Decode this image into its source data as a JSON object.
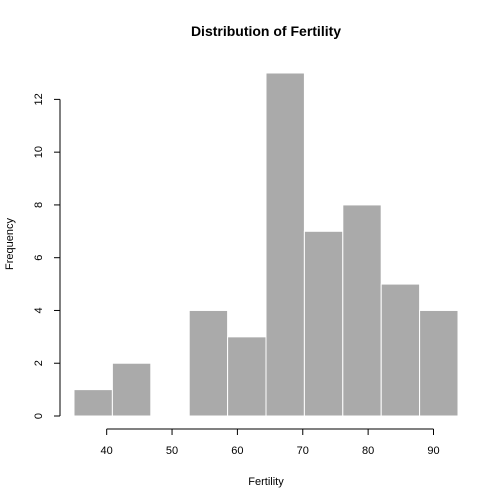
{
  "chart_data": {
    "type": "bar",
    "title": "Distribution of Fertility",
    "xlabel": "Fertility",
    "ylabel": "Frequency",
    "bins": [
      {
        "start": 35,
        "end": 40.875,
        "count": 1
      },
      {
        "start": 40.875,
        "end": 46.75,
        "count": 2
      },
      {
        "start": 46.75,
        "end": 52.625,
        "count": 0
      },
      {
        "start": 52.625,
        "end": 58.5,
        "count": 4
      },
      {
        "start": 58.5,
        "end": 64.375,
        "count": 3
      },
      {
        "start": 64.375,
        "end": 70.25,
        "count": 13
      },
      {
        "start": 70.25,
        "end": 76.125,
        "count": 7
      },
      {
        "start": 76.125,
        "end": 82,
        "count": 8
      },
      {
        "start": 82,
        "end": 87.875,
        "count": 5
      },
      {
        "start": 87.875,
        "end": 93.75,
        "count": 4
      }
    ],
    "xlim": [
      35,
      93.75
    ],
    "ylim": [
      0,
      13
    ],
    "xticks": [
      40,
      50,
      60,
      70,
      80,
      90
    ],
    "yticks": [
      0,
      2,
      4,
      6,
      8,
      10,
      12
    ],
    "grid": false,
    "legend": "none",
    "bar_color": "#aaaaaa",
    "bar_edge_color": "#ffffff"
  }
}
